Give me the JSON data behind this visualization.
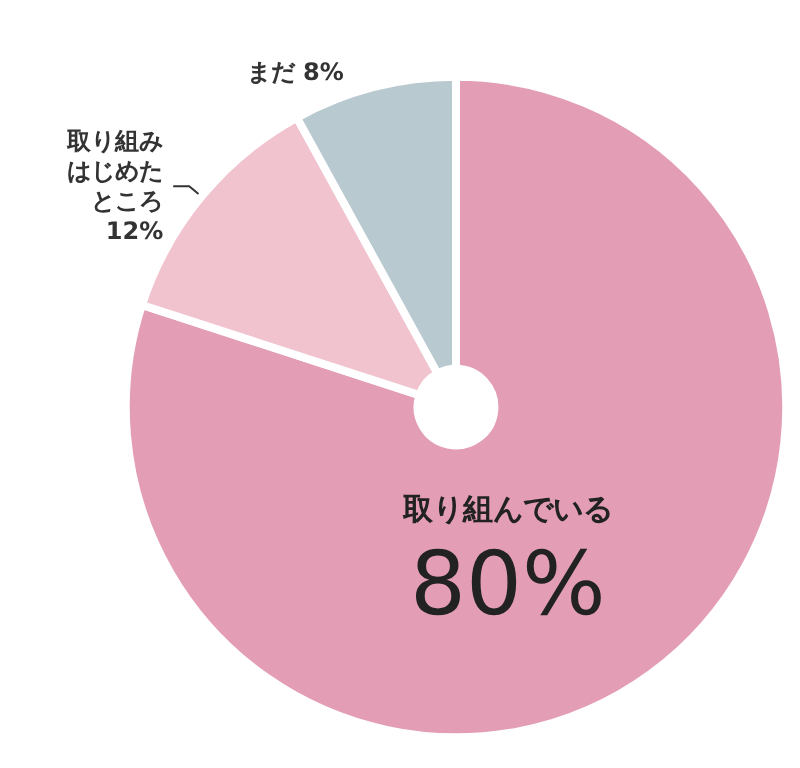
{
  "chart_data": {
    "type": "pie",
    "categories": [
      "取り組んでいる",
      "取り組みはじめたところ",
      "まだ"
    ],
    "values": [
      80,
      12,
      8
    ],
    "value_labels": [
      "80%",
      "12%",
      "8%"
    ],
    "colors": [
      "#e39db5",
      "#f0c3cf",
      "#b8c9d0"
    ],
    "legend": false
  }
}
